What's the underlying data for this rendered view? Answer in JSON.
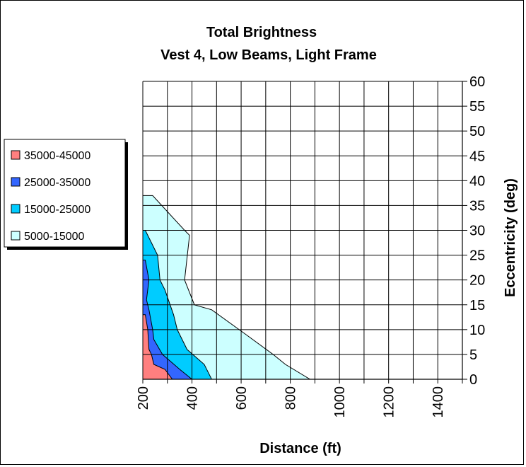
{
  "chart_data": {
    "type": "area",
    "title": "Total Brightness",
    "subtitle": "Vest 4, Low Beams, Light Frame",
    "xlabel": "Distance (ft)",
    "ylabel": "Eccentricity (deg)",
    "xlim": [
      200,
      1500
    ],
    "ylim": [
      0,
      60
    ],
    "x_grid_step": 100,
    "y_grid_step": 5,
    "x_ticks": [
      200,
      400,
      600,
      800,
      1000,
      1200,
      1400
    ],
    "x_tick_labels": [
      "200",
      "400",
      "600",
      "800",
      "1000",
      "1200",
      "1400"
    ],
    "y_ticks": [
      0,
      5,
      10,
      15,
      20,
      25,
      30,
      35,
      40,
      45,
      50,
      55,
      60
    ],
    "y_tick_labels": [
      "0",
      "5",
      "10",
      "15",
      "20",
      "25",
      "30",
      "35",
      "40",
      "45",
      "50",
      "55",
      "60"
    ],
    "grid": true,
    "legend_position": "left",
    "series": [
      {
        "name": "5000-15000",
        "color": "#ccffff",
        "boundary": [
          [
            200,
            37
          ],
          [
            240,
            37
          ],
          [
            370,
            30
          ],
          [
            390,
            29
          ],
          [
            370,
            20
          ],
          [
            410,
            15
          ],
          [
            480,
            14
          ],
          [
            620,
            9
          ],
          [
            730,
            5
          ],
          [
            780,
            3
          ],
          [
            880,
            0
          ]
        ]
      },
      {
        "name": "15000-25000",
        "color": "#00ccff",
        "boundary": [
          [
            200,
            30
          ],
          [
            210,
            30
          ],
          [
            240,
            27
          ],
          [
            260,
            25
          ],
          [
            270,
            20
          ],
          [
            290,
            18
          ],
          [
            325,
            13
          ],
          [
            340,
            10
          ],
          [
            380,
            6
          ],
          [
            450,
            3
          ],
          [
            480,
            0
          ]
        ]
      },
      {
        "name": "25000-35000",
        "color": "#3366ff",
        "boundary": [
          [
            200,
            24
          ],
          [
            210,
            24
          ],
          [
            225,
            20
          ],
          [
            215,
            16
          ],
          [
            225,
            14
          ],
          [
            240,
            10
          ],
          [
            245,
            8
          ],
          [
            280,
            5
          ],
          [
            350,
            2
          ],
          [
            400,
            0
          ]
        ]
      },
      {
        "name": "35000-45000",
        "color": "#ff7f7f",
        "boundary": [
          [
            200,
            13
          ],
          [
            210,
            13
          ],
          [
            220,
            10
          ],
          [
            225,
            6
          ],
          [
            235,
            5
          ],
          [
            245,
            3
          ],
          [
            290,
            2
          ],
          [
            320,
            0
          ]
        ]
      }
    ],
    "legend": [
      "35000-45000",
      "25000-35000",
      "15000-25000",
      "5000-15000"
    ]
  }
}
